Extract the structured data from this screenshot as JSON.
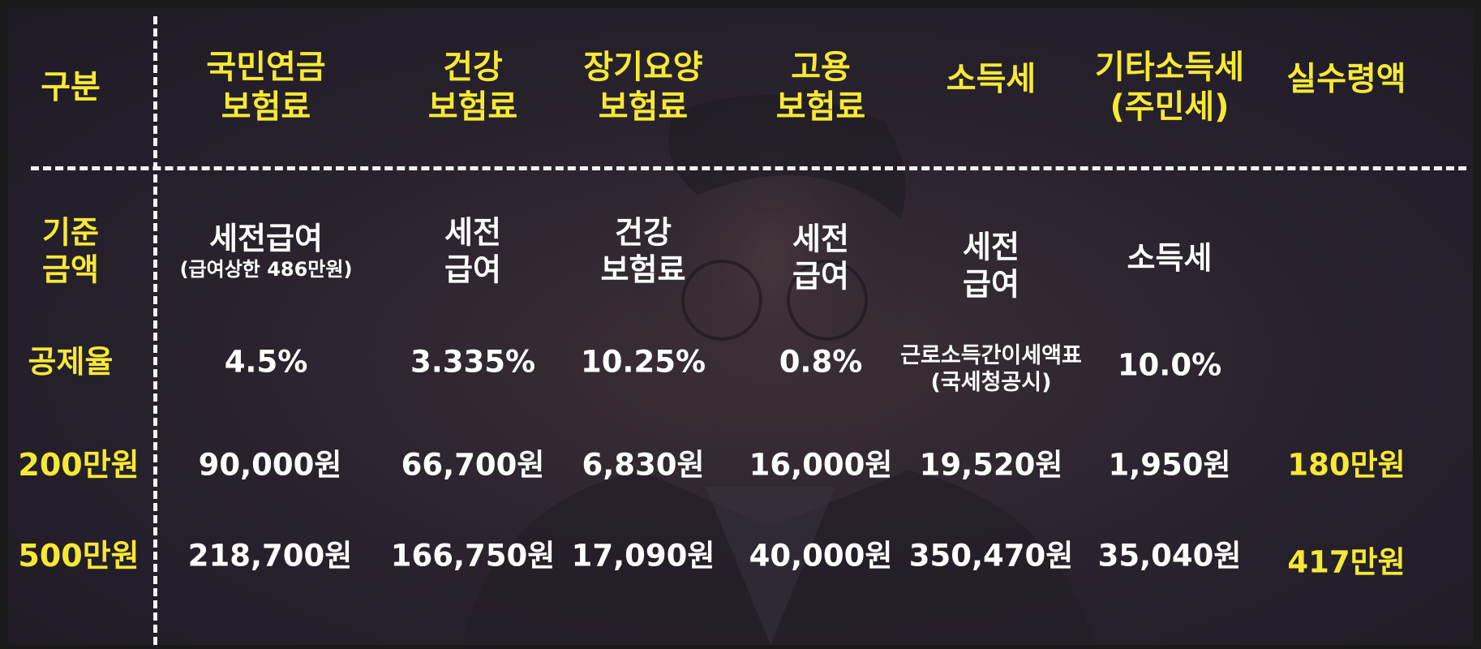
{
  "colors": {
    "accent": "#f6e935",
    "text": "#ffffff",
    "background": "#2a2430",
    "divider": "#f2f2f2"
  },
  "header": {
    "corner": "구분",
    "columns": [
      {
        "line1": "국민연금",
        "line2": "보험료"
      },
      {
        "line1": "건강",
        "line2": "보험료"
      },
      {
        "line1": "장기요양",
        "line2": "보험료"
      },
      {
        "line1": "고용",
        "line2": "보험료"
      },
      {
        "line1": "소득세",
        "line2": ""
      },
      {
        "line1": "기타소득세",
        "line2": "(주민세)"
      },
      {
        "line1": "실수령액",
        "line2": ""
      }
    ]
  },
  "basis": {
    "label_line1": "기준",
    "label_line2": "금액",
    "cells": [
      {
        "line1": "세전급여",
        "line2": "(급여상한 486만원)"
      },
      {
        "line1": "세전",
        "line2": "급여"
      },
      {
        "line1": "건강",
        "line2": "보험료"
      },
      {
        "line1": "세전",
        "line2": "급여"
      },
      {
        "line1": "세전",
        "line2": "급여"
      },
      {
        "line1": "소득세",
        "line2": ""
      }
    ]
  },
  "rate": {
    "label": "공제율",
    "cells": [
      {
        "line1": "4.5%",
        "line2": ""
      },
      {
        "line1": "3.335%",
        "line2": ""
      },
      {
        "line1": "10.25%",
        "line2": ""
      },
      {
        "line1": "0.8%",
        "line2": ""
      },
      {
        "line1": "근로소득간이세액표",
        "line2": "(국세청공시)"
      },
      {
        "line1": "10.0%",
        "line2": ""
      }
    ]
  },
  "rows": [
    {
      "label": "200만원",
      "values": [
        "90,000원",
        "66,700원",
        "6,830원",
        "16,000원",
        "19,520원",
        "1,950원"
      ],
      "net": "180만원"
    },
    {
      "label": "500만원",
      "values": [
        "218,700원",
        "166,750원",
        "17,090원",
        "40,000원",
        "350,470원",
        "35,040원"
      ],
      "net": "417만원"
    }
  ]
}
